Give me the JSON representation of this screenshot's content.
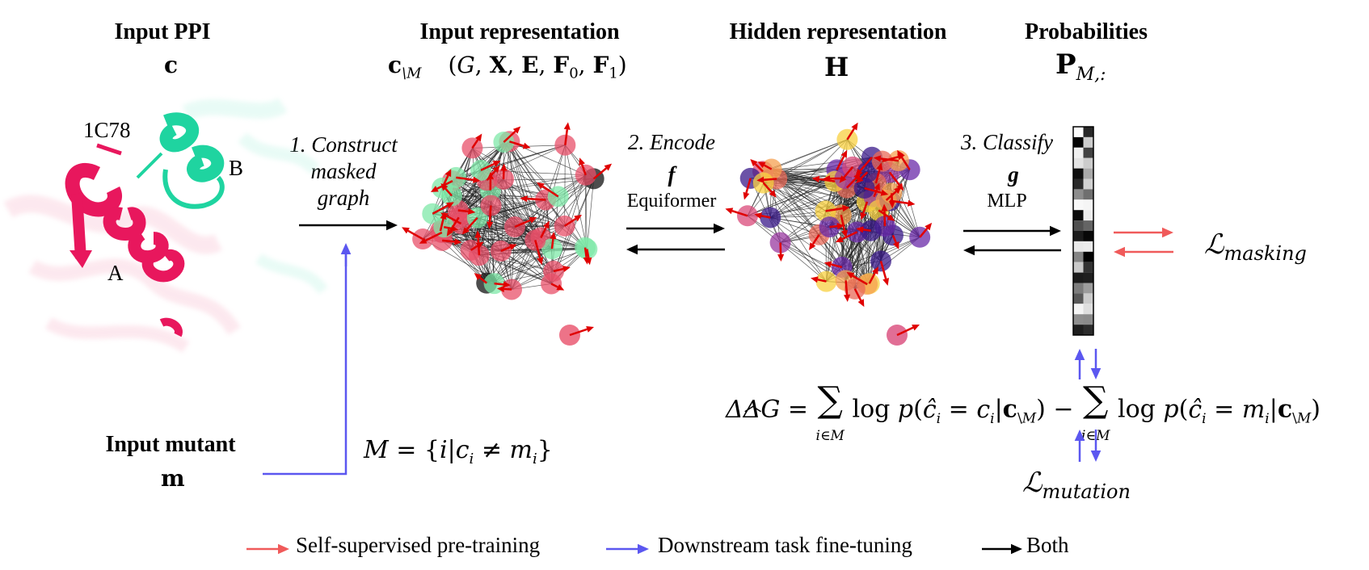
{
  "headers": {
    "input_ppi": "Input PPI",
    "input_repr": "Input representation",
    "hidden_repr": "Hidden representation",
    "probabilities": "Probabilities"
  },
  "symbols": {
    "c": "c",
    "c_masked": "c\\M",
    "repr_tuple": "(G, X, E, F0, F1)",
    "H": "H",
    "P": "PM,:"
  },
  "protein": {
    "pdb_id": "1C78",
    "chain_a": "A",
    "chain_b": "B"
  },
  "steps": {
    "construct": [
      "1. Construct",
      "masked",
      "graph"
    ],
    "encode": "2. Encode",
    "encode_fn": "f",
    "encode_model": "Equiformer",
    "classify": "3. Classify",
    "classify_fn": "g",
    "classify_model": "MLP"
  },
  "mutant": {
    "label": "Input mutant",
    "symbol": "m",
    "mask_set": "M = {i | ci ≠ mi}"
  },
  "losses": {
    "masking": "Lmasking",
    "mutation": "Lmutation"
  },
  "formula": "ΔΔĜ = Σi∈M log p(ĉi = ci | c\\M) − Σi∈M log p(ĉi = mi | c\\M)",
  "legend": [
    {
      "label": "Self-supervised pre-training",
      "color": "#f05a5a"
    },
    {
      "label": "Downstream task fine-tuning",
      "color": "#5b57f0"
    },
    {
      "label": "Both",
      "color": "#000000"
    }
  ],
  "colors": {
    "red": "#f05a5a",
    "blue": "#5b57f0",
    "black": "#000000",
    "chainA": "#e8175d",
    "chainB": "#1fd4a0"
  }
}
